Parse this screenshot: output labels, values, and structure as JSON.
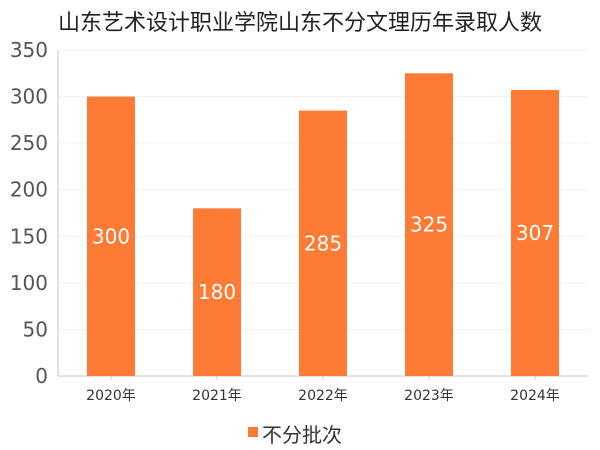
{
  "chart_data": {
    "type": "bar",
    "title": "山东艺术设计职业学院山东不分文理历年录取人数",
    "categories": [
      "2020年",
      "2021年",
      "2022年",
      "2023年",
      "2024年"
    ],
    "series": [
      {
        "name": "不分批次",
        "values": [
          300,
          180,
          285,
          325,
          307
        ]
      }
    ],
    "yticks": [
      0,
      50,
      100,
      150,
      200,
      250,
      300,
      350
    ],
    "ylim": [
      0,
      350
    ],
    "grid": true,
    "legend_position": "bottom-center",
    "data_labels": [
      "300",
      "180",
      "285",
      "325",
      "307"
    ],
    "colors": {
      "bar": "#fe7b35",
      "axis": "#c8c8c8",
      "grid": "#f0f0f0",
      "text": "#333333",
      "label": "#ffffff"
    }
  }
}
